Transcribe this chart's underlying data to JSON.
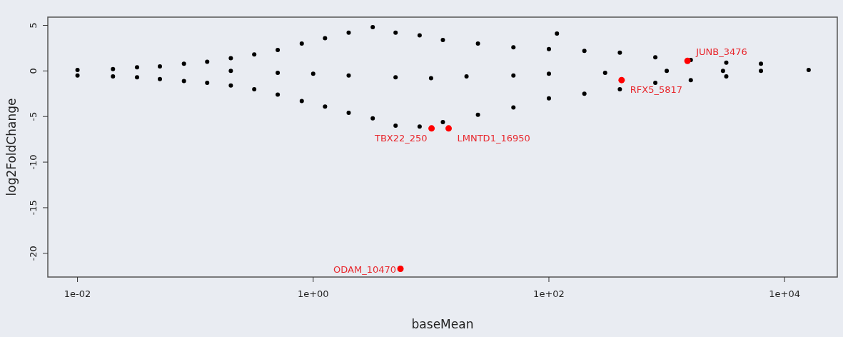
{
  "chart_data": {
    "type": "scatter",
    "xlabel": "baseMean",
    "ylabel": "log2FoldChange",
    "log": "x",
    "grid": false,
    "marker": "circle",
    "xlim": [
      0.0056,
      28000
    ],
    "ylim": [
      -22.6,
      5.9
    ],
    "xticks": [
      {
        "value": 0.01,
        "label": "1e-02"
      },
      {
        "value": 1,
        "label": "1e+00"
      },
      {
        "value": 100,
        "label": "1e+02"
      },
      {
        "value": 10000,
        "label": "1e+04"
      }
    ],
    "yticks": [
      -20,
      -15,
      -10,
      -5,
      0,
      5
    ],
    "series": [
      {
        "color": "#000000",
        "x": [
          0.01,
          0.01,
          0.02,
          0.02,
          0.032,
          0.032,
          0.05,
          0.05,
          0.08,
          0.08,
          0.126,
          0.126,
          0.2,
          0.2,
          0.316,
          0.316,
          0.5,
          0.5,
          0.8,
          0.8,
          1.26,
          1.26,
          2,
          2,
          3.2,
          3.2,
          5,
          5,
          8,
          8,
          12.6,
          12.6,
          25,
          25,
          50,
          50,
          100,
          117,
          100,
          200,
          200,
          400,
          400,
          800,
          800,
          1600,
          1600,
          3200,
          3200,
          6300,
          6300,
          16000,
          0.2,
          0.5,
          1,
          2,
          5,
          10,
          20,
          50,
          100,
          300,
          1000,
          3000
        ],
        "values": [
          0.1,
          -0.5,
          0.2,
          -0.6,
          0.4,
          -0.7,
          0.5,
          -0.9,
          0.8,
          -1.1,
          1,
          -1.3,
          1.4,
          -1.6,
          1.8,
          -2,
          2.3,
          -2.6,
          3,
          -3.3,
          3.6,
          -3.9,
          4.2,
          -4.6,
          4.8,
          -5.2,
          4.2,
          -6,
          3.9,
          -6.1,
          3.4,
          -5.6,
          3,
          -4.8,
          2.6,
          -4,
          2.4,
          4.1,
          -3,
          2.2,
          -2.5,
          2,
          -2,
          1.5,
          -1.3,
          1.2,
          -1,
          0.9,
          -0.6,
          0.8,
          0,
          0.1,
          0,
          -0.2,
          -0.3,
          -0.5,
          -0.7,
          -0.8,
          -0.6,
          -0.5,
          -0.3,
          -0.2,
          0,
          0
        ]
      },
      {
        "color": "#ff0000",
        "x": [
          5.5,
          10.1,
          14.1,
          414,
          1500
        ],
        "values": [
          -21.7,
          -6.3,
          -6.3,
          -1,
          1.1
        ]
      }
    ],
    "annotations": [
      {
        "text": "ODAM_10470",
        "x": 5.5,
        "y": -21.7
      },
      {
        "text": "TBX22_250",
        "x": 10.1,
        "y": -6.3
      },
      {
        "text": "LMNTD1_16950",
        "x": 14.1,
        "y": -6.3
      },
      {
        "text": "RFX5_5817",
        "x": 414,
        "y": -1
      },
      {
        "text": "JUNB_3476",
        "x": 1500,
        "y": 1.1
      }
    ]
  }
}
